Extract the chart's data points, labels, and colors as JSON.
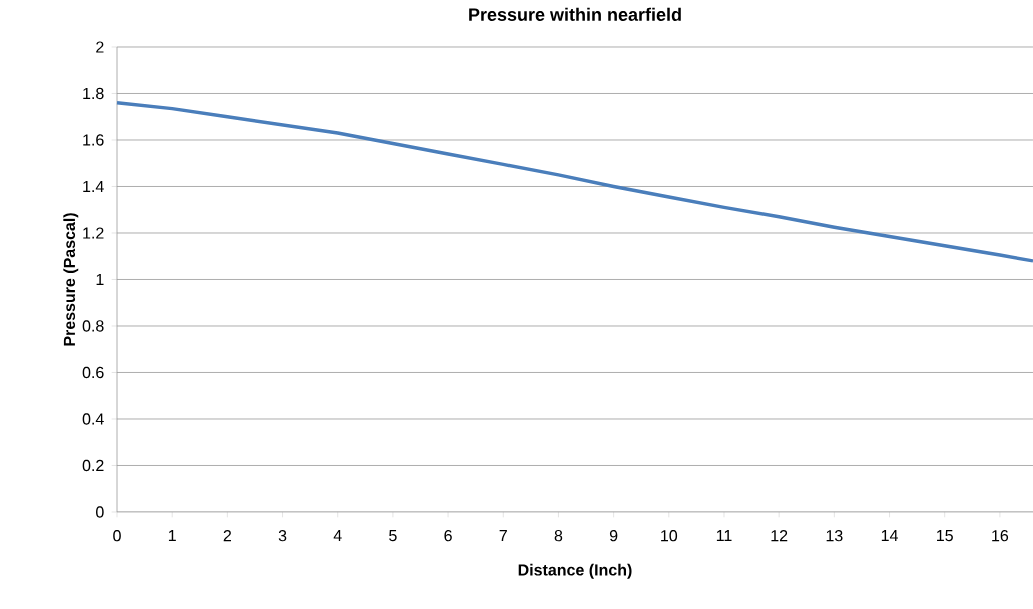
{
  "chart_data": {
    "type": "line",
    "title": "Pressure within nearfield",
    "xlabel": "Distance (Inch)",
    "ylabel": "Pressure (Pascal)",
    "x": [
      0,
      1,
      2,
      3,
      4,
      5,
      6,
      7,
      8,
      9,
      10,
      11,
      12,
      13,
      14,
      15,
      16,
      16.6
    ],
    "series": [
      {
        "color": "#4a7ebb",
        "values": [
          1.76,
          1.735,
          1.7,
          1.665,
          1.63,
          1.585,
          1.54,
          1.495,
          1.45,
          1.4,
          1.355,
          1.31,
          1.27,
          1.225,
          1.185,
          1.145,
          1.105,
          1.08
        ]
      }
    ],
    "xlim": [
      0,
      16.6
    ],
    "xticks": [
      0,
      1,
      2,
      3,
      4,
      5,
      6,
      7,
      8,
      9,
      10,
      11,
      12,
      13,
      14,
      15,
      16
    ],
    "ylim": [
      0,
      2
    ],
    "yticks": [
      0,
      0.2,
      0.4,
      0.6,
      0.8,
      1,
      1.2,
      1.4,
      1.6,
      1.8,
      2
    ],
    "grid": "y"
  }
}
